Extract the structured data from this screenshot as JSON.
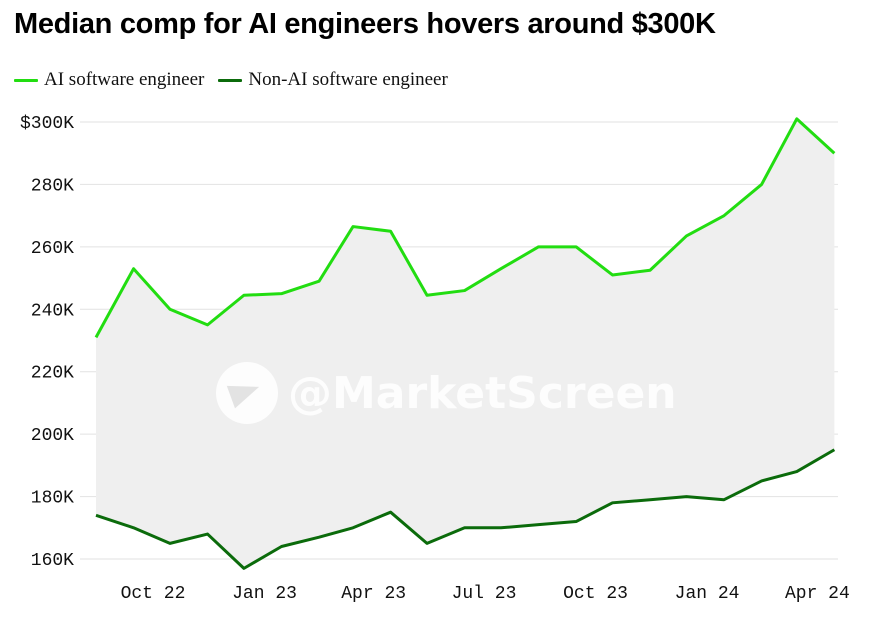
{
  "title": "Median comp for AI engineers hovers around $300K",
  "legend": {
    "items": [
      {
        "label": "AI software engineer",
        "color": "#22dd11"
      },
      {
        "label": "Non-AI software engineer",
        "color": "#0b6b0b"
      }
    ]
  },
  "watermark": "@MarketScreen",
  "colors": {
    "band": "#efefef",
    "grid": "#e2e2e2"
  },
  "chart_data": {
    "type": "line",
    "x": [
      "2022-08-15",
      "2022-09-15",
      "2022-10-15",
      "2022-11-15",
      "2022-12-15",
      "2023-01-15",
      "2023-02-15",
      "2023-03-15",
      "2023-04-15",
      "2023-05-15",
      "2023-06-15",
      "2023-07-15",
      "2023-08-15",
      "2023-09-15",
      "2023-10-15",
      "2023-11-15",
      "2023-12-15",
      "2024-01-15",
      "2024-02-15",
      "2024-03-15",
      "2024-04-15"
    ],
    "series": [
      {
        "name": "AI software engineer",
        "color": "#22dd11",
        "values": [
          231000,
          253000,
          240000,
          235000,
          244500,
          245000,
          249000,
          266500,
          265000,
          244500,
          246000,
          253000,
          260000,
          260000,
          251000,
          252500,
          263500,
          270000,
          280000,
          301000,
          290000
        ]
      },
      {
        "name": "Non-AI software engineer",
        "color": "#0b6b0b",
        "values": [
          174000,
          170000,
          165000,
          168000,
          157000,
          164000,
          167000,
          170000,
          175000,
          165000,
          170000,
          170000,
          171000,
          172000,
          178000,
          179000,
          180000,
          179000,
          185000,
          188000,
          195000
        ]
      }
    ],
    "shaded_band_between_series": true,
    "ylim": [
      160000,
      300000
    ],
    "yticks": [
      160000,
      180000,
      200000,
      220000,
      240000,
      260000,
      280000,
      300000
    ],
    "ytick_labels": [
      "160K",
      "180K",
      "200K",
      "220K",
      "240K",
      "260K",
      "280K",
      "$300K"
    ],
    "xticks": [
      "2022-10-01",
      "2023-01-01",
      "2023-04-01",
      "2023-07-01",
      "2023-10-01",
      "2024-01-01",
      "2024-04-01"
    ],
    "xtick_labels": [
      "Oct 22",
      "Jan 23",
      "Apr 23",
      "Jul 23",
      "Oct 23",
      "Jan 24",
      "Apr 24"
    ],
    "grid": "horizontal",
    "legend_position": "top-left",
    "title": "Median comp for AI engineers hovers around $300K",
    "xlabel": "",
    "ylabel": ""
  }
}
